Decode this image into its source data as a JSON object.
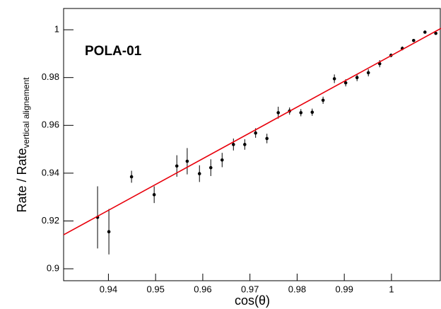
{
  "chart_data": {
    "type": "errorbar",
    "annotation": "POLA-01",
    "x_label": "cos(θ)",
    "y_label": "Rate / Rate",
    "y_label_sub": "vertical alignement",
    "x": [
      0.9377,
      0.9401,
      0.9449,
      0.9497,
      0.9545,
      0.9567,
      0.9593,
      0.9617,
      0.9641,
      0.9665,
      0.9689,
      0.9712,
      0.9736,
      0.976,
      0.9784,
      0.9808,
      0.9832,
      0.9855,
      0.9879,
      0.9903,
      0.9927,
      0.9951,
      0.9975,
      0.9999,
      1.0023,
      1.0047,
      1.0071,
      1.0094
    ],
    "series": [
      {
        "color": "#000000",
        "values": [
          0.9215,
          0.9155,
          0.9385,
          0.931,
          0.943,
          0.945,
          0.9398,
          0.9423,
          0.9455,
          0.952,
          0.952,
          0.9568,
          0.9545,
          0.9653,
          0.966,
          0.9653,
          0.9655,
          0.9705,
          0.9795,
          0.9778,
          0.98,
          0.982,
          0.9858,
          0.9893,
          0.9922,
          0.9955,
          0.999,
          0.9985
        ],
        "errors": [
          0.013,
          0.0095,
          0.0025,
          0.0035,
          0.0045,
          0.0055,
          0.0035,
          0.0035,
          0.003,
          0.0025,
          0.0022,
          0.002,
          0.002,
          0.0025,
          0.0015,
          0.0015,
          0.0015,
          0.0015,
          0.0018,
          0.0015,
          0.0015,
          0.0015,
          0.0015,
          0.0008,
          0.0008,
          0.0005,
          0.0005,
          0.0005
        ]
      }
    ],
    "fit": {
      "color": "#e8000b",
      "x": [
        0.9305,
        1.0105
      ],
      "y": [
        0.9142,
        1.0006
      ]
    },
    "xlim": [
      0.9305,
      1.0105
    ],
    "ylim": [
      0.895,
      1.0089
    ],
    "xticks": [
      0.94,
      0.95,
      0.96,
      0.97,
      0.98,
      0.99,
      1
    ],
    "yticks": [
      0.9,
      0.92,
      0.94,
      0.96,
      0.98,
      1
    ]
  }
}
